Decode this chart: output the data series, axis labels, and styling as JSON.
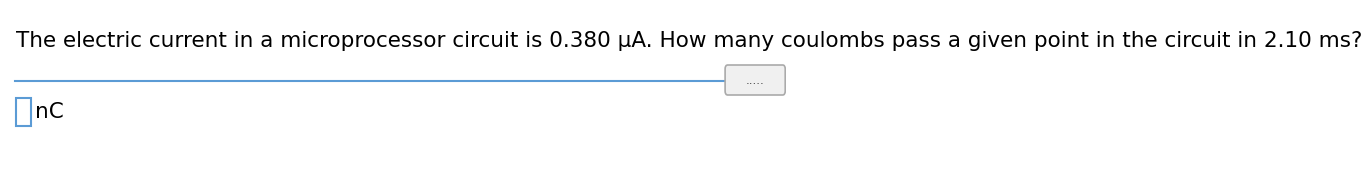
{
  "question_text": "The electric current in a microprocessor circuit is 0.380 μA. How many coulombs pass a given point in the circuit in 2.10 ms?",
  "unit_text": "nC",
  "background_color": "#ffffff",
  "text_color": "#000000",
  "question_fontsize": 15.5,
  "unit_fontsize": 15.5,
  "divider_line_color": "#5b9bd5",
  "dots_text": ".....",
  "pill_border_color": "#aaaaaa",
  "pill_face_color": "#f0f0f0",
  "input_box_border_color": "#5b9bd5",
  "input_box_face_color": "#ffffff"
}
